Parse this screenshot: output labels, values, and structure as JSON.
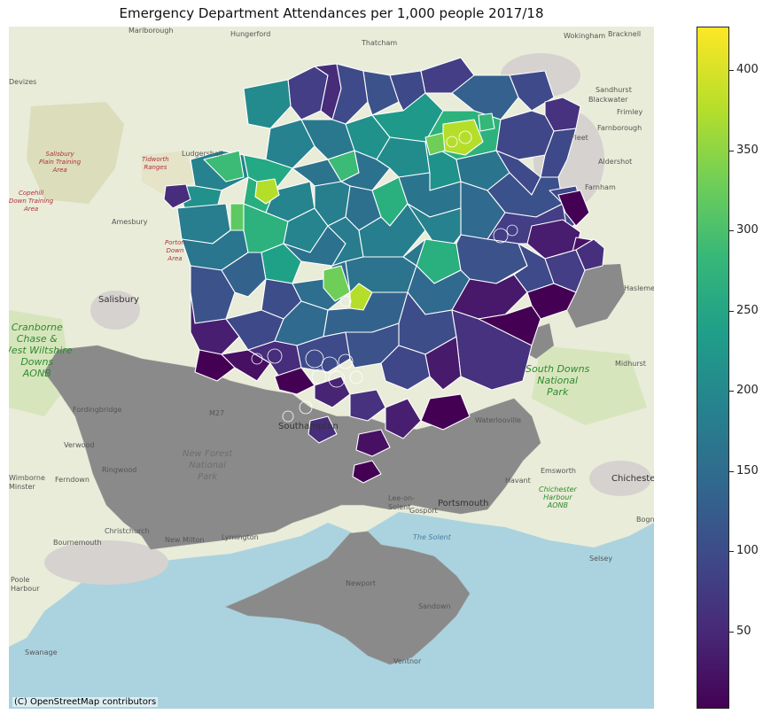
{
  "title": "Emergency Department Attendances per 1,000 people 2017/18",
  "attribution": "(C) OpenStreetMap contributors",
  "colorbar": {
    "colormap": "viridis",
    "min": 2,
    "max": 427,
    "ticks": [
      "50",
      "100",
      "150",
      "200",
      "250",
      "300",
      "350",
      "400"
    ],
    "tick_values": [
      50,
      100,
      150,
      200,
      250,
      300,
      350,
      400
    ]
  },
  "colors": {
    "sea": "#aad3df",
    "land": "#e9ecd8",
    "no_data": "#8a8a8a",
    "boundary": "#ffffff"
  },
  "places": {
    "marlborough": "Marlborough",
    "hungerford": "Hungerford",
    "thatcham": "Thatcham",
    "wokingham": "Wokingham",
    "bracknell": "Bracknell",
    "devizes": "Devizes",
    "sandhurst": "Sandhurst",
    "blackwater": "Blackwater",
    "frimley": "Frimley",
    "farnborough": "Farnborough",
    "fleet": "Fleet",
    "aldershot": "Aldershot",
    "farnham": "Farnham",
    "ludgershall": "Ludgershall",
    "amesbury": "Amesbury",
    "salisbury": "Salisbury",
    "haslemere": "Haslemere",
    "midhurst": "Midhurst",
    "chichester": "Chichester",
    "fordingbridge": "Fordingbridge",
    "verwood": "Verwood",
    "ringwood": "Ringwood",
    "ferndown": "Ferndown",
    "wimborne": "Wimborne\nMinster",
    "christchurch": "Christchurch",
    "bournemouth": "Bournemouth",
    "poole": "Poole\nHarbour",
    "swanage": "Swanage",
    "new_milton": "New Milton",
    "lymington": "Lymington",
    "southampton": "Southampton",
    "portsmouth": "Portsmouth",
    "lee_on_solent": "Lee-on-\nSolent",
    "gosport": "Gosport",
    "waterlooville": "Waterlooville",
    "havant": "Havant",
    "emsworth": "Emsworth",
    "selsey": "Selsey",
    "bognor": "Bogno",
    "newport": "Newport",
    "sandown": "Sandown",
    "ventnor": "Ventnor",
    "the_solent": "The Solent",
    "eastleigh_m": "M27",
    "salisbury_plain": "Salisbury\nPlain Training\nArea",
    "tidworth": "Tidworth\nRanges",
    "copehill": "Copehill\nDown Training\nArea",
    "porton": "Porton\nDown\nArea",
    "cranborne": "Cranborne\nChase &\nWest Wiltshire\nDowns\nAONB",
    "south_downs": "South Downs\nNational\nPark",
    "new_forest": "New Forest\nNational\nPark",
    "chichester_harbour": "Chichester\nHarbour\nAONB"
  }
}
